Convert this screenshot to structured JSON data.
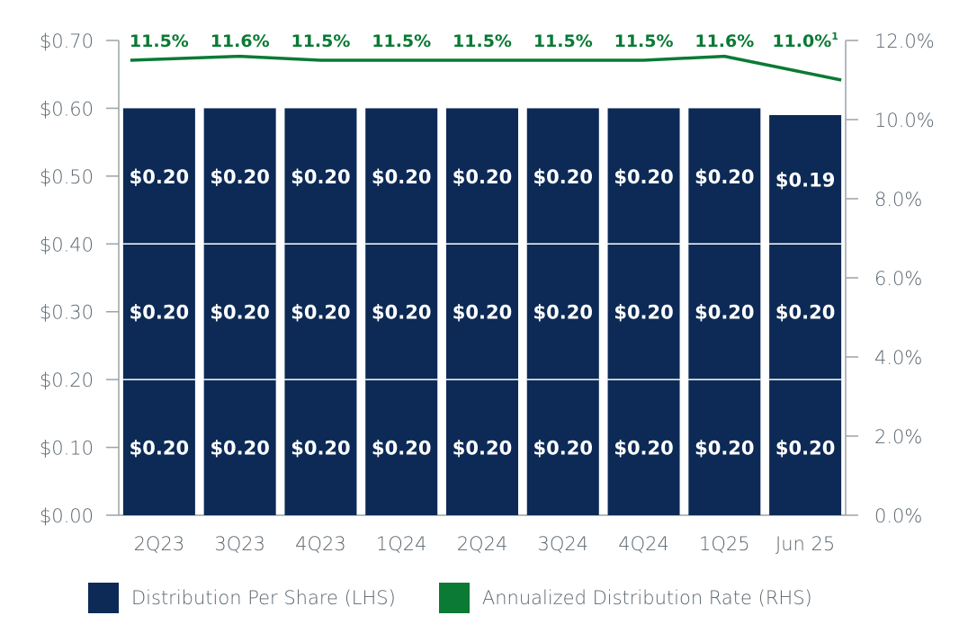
{
  "chart_data": {
    "type": "stacked-bar-with-line",
    "categories": [
      "2Q23",
      "3Q23",
      "4Q23",
      "1Q24",
      "2Q24",
      "3Q24",
      "4Q24",
      "1Q25",
      "Jun 25"
    ],
    "series": [
      {
        "name": "Distribution Per Share (LHS)",
        "axis": "left",
        "kind": "stacked-bar",
        "color": "#0c2a55",
        "stacks": [
          [
            0.2,
            0.2,
            0.2
          ],
          [
            0.2,
            0.2,
            0.2
          ],
          [
            0.2,
            0.2,
            0.2
          ],
          [
            0.2,
            0.2,
            0.2
          ],
          [
            0.2,
            0.2,
            0.2
          ],
          [
            0.2,
            0.2,
            0.2
          ],
          [
            0.2,
            0.2,
            0.2
          ],
          [
            0.2,
            0.2,
            0.2
          ],
          [
            0.2,
            0.2,
            0.19
          ]
        ],
        "labels": [
          [
            "$0.20",
            "$0.20",
            "$0.20"
          ],
          [
            "$0.20",
            "$0.20",
            "$0.20"
          ],
          [
            "$0.20",
            "$0.20",
            "$0.20"
          ],
          [
            "$0.20",
            "$0.20",
            "$0.20"
          ],
          [
            "$0.20",
            "$0.20",
            "$0.20"
          ],
          [
            "$0.20",
            "$0.20",
            "$0.20"
          ],
          [
            "$0.20",
            "$0.20",
            "$0.20"
          ],
          [
            "$0.20",
            "$0.20",
            "$0.20"
          ],
          [
            "$0.20",
            "$0.20",
            "$0.19"
          ]
        ]
      },
      {
        "name": "Annualized Distribution Rate (RHS)",
        "axis": "right",
        "kind": "line",
        "color": "#0a7a35",
        "values": [
          11.5,
          11.6,
          11.5,
          11.5,
          11.5,
          11.5,
          11.5,
          11.6,
          11.0
        ],
        "labels": [
          "11.5%",
          "11.6%",
          "11.5%",
          "11.5%",
          "11.5%",
          "11.5%",
          "11.5%",
          "11.6%",
          "11.0%"
        ],
        "label_superscripts": [
          "",
          "",
          "",
          "",
          "",
          "",
          "",
          "",
          "1"
        ]
      }
    ],
    "left_axis": {
      "ylim": [
        0,
        0.7
      ],
      "ticks": [
        0,
        0.1,
        0.2,
        0.3,
        0.4,
        0.5,
        0.6,
        0.7
      ],
      "tick_labels": [
        "$0.00",
        "$0.10",
        "$0.20",
        "$0.30",
        "$0.40",
        "$0.50",
        "$0.60",
        "$0.70"
      ]
    },
    "right_axis": {
      "ylim": [
        0,
        12
      ],
      "ticks": [
        0,
        2,
        4,
        6,
        8,
        10,
        12
      ],
      "tick_labels": [
        "0.0%",
        "2.0%",
        "4.0%",
        "6.0%",
        "8.0%",
        "10.0%",
        "12.0%"
      ]
    },
    "grid": false,
    "legend_position": "bottom",
    "axis_color": "#9aa3a9",
    "tick_text_color": "#5b6770"
  },
  "legend": [
    {
      "label": "Distribution Per Share (LHS)",
      "color": "#0c2a55"
    },
    {
      "label": "Annualized Distribution Rate (RHS)",
      "color": "#0a7a35"
    }
  ]
}
